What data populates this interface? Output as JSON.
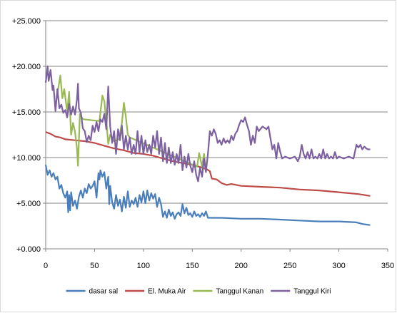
{
  "chart_data": {
    "type": "line",
    "title": "",
    "xlabel": "",
    "ylabel": "",
    "xlim": [
      0,
      350
    ],
    "ylim": [
      0,
      25
    ],
    "x_ticks": [
      "0",
      "50",
      "100",
      "150",
      "200",
      "250",
      "300",
      "350"
    ],
    "y_ticks": [
      "+0.000",
      "+5.000",
      "+10.000",
      "+15.000",
      "+20.000",
      "+25.000"
    ],
    "grid": "horizontal",
    "legend_position": "bottom",
    "series": [
      {
        "name": "dasar sal",
        "color": "#4a7ebb",
        "points": [
          [
            0,
            9.2
          ],
          [
            2,
            8.1
          ],
          [
            4,
            8.6
          ],
          [
            6,
            7.9
          ],
          [
            8,
            8.3
          ],
          [
            10,
            7.6
          ],
          [
            12,
            7.9
          ],
          [
            14,
            6.6
          ],
          [
            16,
            7.0
          ],
          [
            18,
            6.1
          ],
          [
            20,
            5.6
          ],
          [
            22,
            6.3
          ],
          [
            23,
            4.0
          ],
          [
            24,
            5.9
          ],
          [
            25,
            4.2
          ],
          [
            26,
            6.2
          ],
          [
            28,
            4.7
          ],
          [
            30,
            5.3
          ],
          [
            32,
            4.4
          ],
          [
            34,
            5.7
          ],
          [
            36,
            6.4
          ],
          [
            38,
            5.6
          ],
          [
            40,
            6.6
          ],
          [
            42,
            6.1
          ],
          [
            44,
            7.1
          ],
          [
            46,
            6.6
          ],
          [
            48,
            6.9
          ],
          [
            50,
            7.4
          ],
          [
            52,
            5.6
          ],
          [
            54,
            8.3
          ],
          [
            55,
            7.6
          ],
          [
            56,
            8.6
          ],
          [
            58,
            7.9
          ],
          [
            60,
            8.4
          ],
          [
            62,
            6.6
          ],
          [
            64,
            7.9
          ],
          [
            65,
            4.9
          ],
          [
            66,
            6.9
          ],
          [
            68,
            5.1
          ],
          [
            70,
            4.4
          ],
          [
            72,
            5.9
          ],
          [
            74,
            4.7
          ],
          [
            76,
            5.4
          ],
          [
            78,
            4.1
          ],
          [
            80,
            5.7
          ],
          [
            82,
            4.5
          ],
          [
            84,
            6.3
          ],
          [
            86,
            4.6
          ],
          [
            88,
            5.3
          ],
          [
            90,
            4.9
          ],
          [
            92,
            5.6
          ],
          [
            94,
            4.6
          ],
          [
            96,
            5.9
          ],
          [
            98,
            5.1
          ],
          [
            100,
            6.3
          ],
          [
            102,
            5.0
          ],
          [
            104,
            6.4
          ],
          [
            106,
            5.3
          ],
          [
            108,
            6.1
          ],
          [
            110,
            5.5
          ],
          [
            112,
            6.0
          ],
          [
            114,
            4.6
          ],
          [
            116,
            5.6
          ],
          [
            118,
            4.9
          ],
          [
            120,
            3.5
          ],
          [
            122,
            4.1
          ],
          [
            124,
            3.4
          ],
          [
            126,
            4.3
          ],
          [
            128,
            3.6
          ],
          [
            130,
            4.0
          ],
          [
            132,
            3.3
          ],
          [
            134,
            3.8
          ],
          [
            136,
            4.0
          ],
          [
            138,
            3.6
          ],
          [
            140,
            4.9
          ],
          [
            142,
            3.9
          ],
          [
            144,
            4.5
          ],
          [
            146,
            3.7
          ],
          [
            148,
            3.9
          ],
          [
            150,
            3.5
          ],
          [
            152,
            4.1
          ],
          [
            154,
            3.6
          ],
          [
            156,
            3.8
          ],
          [
            158,
            3.5
          ],
          [
            160,
            3.9
          ],
          [
            162,
            3.6
          ],
          [
            164,
            4.1
          ],
          [
            166,
            3.4
          ],
          [
            180,
            3.4
          ],
          [
            200,
            3.3
          ],
          [
            220,
            3.3
          ],
          [
            240,
            3.2
          ],
          [
            260,
            3.1
          ],
          [
            280,
            3.0
          ],
          [
            300,
            3.0
          ],
          [
            318,
            2.9
          ],
          [
            325,
            2.7
          ],
          [
            332,
            2.6
          ]
        ]
      },
      {
        "name": "El. Muka Air",
        "color": "#be4b48",
        "points": [
          [
            0,
            12.8
          ],
          [
            5,
            12.6
          ],
          [
            10,
            12.3
          ],
          [
            15,
            12.2
          ],
          [
            20,
            12.0
          ],
          [
            30,
            11.9
          ],
          [
            40,
            11.8
          ],
          [
            50,
            11.6
          ],
          [
            60,
            11.3
          ],
          [
            70,
            11.0
          ],
          [
            80,
            10.8
          ],
          [
            90,
            10.5
          ],
          [
            100,
            10.4
          ],
          [
            110,
            10.2
          ],
          [
            120,
            9.9
          ],
          [
            130,
            9.6
          ],
          [
            140,
            9.4
          ],
          [
            150,
            9.2
          ],
          [
            160,
            8.9
          ],
          [
            165,
            8.7
          ],
          [
            168,
            8.5
          ],
          [
            170,
            7.7
          ],
          [
            175,
            7.6
          ],
          [
            180,
            7.2
          ],
          [
            185,
            7.0
          ],
          [
            190,
            7.1
          ],
          [
            200,
            6.9
          ],
          [
            220,
            6.8
          ],
          [
            240,
            6.7
          ],
          [
            260,
            6.5
          ],
          [
            280,
            6.4
          ],
          [
            300,
            6.2
          ],
          [
            320,
            6.0
          ],
          [
            332,
            5.8
          ]
        ]
      },
      {
        "name": "Tanggul Kanan",
        "color": "#98b954",
        "points": [
          [
            12,
            17.0
          ],
          [
            15,
            19.0
          ],
          [
            17,
            16.5
          ],
          [
            19,
            17.5
          ],
          [
            22,
            15.0
          ],
          [
            24,
            17.2
          ],
          [
            26,
            12.5
          ],
          [
            28,
            13.8
          ],
          [
            30,
            12.8
          ],
          [
            32,
            11.0
          ],
          [
            33,
            9.1
          ],
          [
            35,
            14.8
          ],
          [
            38,
            14.2
          ],
          [
            55,
            14.0
          ],
          [
            58,
            16.8
          ],
          [
            60,
            16.2
          ],
          [
            62,
            14.0
          ],
          [
            64,
            11.5
          ],
          [
            66,
            12.5
          ],
          [
            70,
            11.8
          ],
          [
            75,
            12.0
          ],
          [
            78,
            13.8
          ],
          [
            80,
            16.0
          ],
          [
            82,
            14.5
          ],
          [
            84,
            12.5
          ],
          [
            86,
            12.2
          ],
          [
            155,
            9.0
          ],
          [
            157,
            10.5
          ],
          [
            160,
            9.0
          ],
          [
            162,
            10.4
          ],
          [
            164,
            8.8
          ]
        ]
      },
      {
        "name": "Tanggul Kiri",
        "color": "#7d60a0",
        "points": [
          [
            0,
            18.2
          ],
          [
            2,
            20.0
          ],
          [
            3,
            18.4
          ],
          [
            5,
            19.6
          ],
          [
            7,
            17.4
          ],
          [
            8,
            17.9
          ],
          [
            10,
            15.1
          ],
          [
            12,
            17.5
          ],
          [
            14,
            15.4
          ],
          [
            16,
            15.8
          ],
          [
            18,
            14.9
          ],
          [
            20,
            15.2
          ],
          [
            22,
            14.4
          ],
          [
            24,
            15.9
          ],
          [
            26,
            14.7
          ],
          [
            28,
            15.6
          ],
          [
            30,
            14.7
          ],
          [
            32,
            16.4
          ],
          [
            33,
            18.1
          ],
          [
            34,
            15.4
          ],
          [
            36,
            14.9
          ],
          [
            38,
            13.2
          ],
          [
            40,
            12.9
          ],
          [
            42,
            11.7
          ],
          [
            44,
            12.4
          ],
          [
            46,
            11.9
          ],
          [
            48,
            13.5
          ],
          [
            50,
            12.8
          ],
          [
            52,
            13.9
          ],
          [
            54,
            12.9
          ],
          [
            56,
            14.2
          ],
          [
            58,
            13.9
          ],
          [
            60,
            14.8
          ],
          [
            62,
            13.1
          ],
          [
            64,
            17.8
          ],
          [
            66,
            13.4
          ],
          [
            68,
            11.6
          ],
          [
            70,
            12.9
          ],
          [
            72,
            10.4
          ],
          [
            74,
            13.1
          ],
          [
            76,
            11.9
          ],
          [
            78,
            13.5
          ],
          [
            80,
            10.9
          ],
          [
            82,
            12.4
          ],
          [
            84,
            10.9
          ],
          [
            86,
            12.2
          ],
          [
            88,
            10.4
          ],
          [
            90,
            11.4
          ],
          [
            92,
            10.4
          ],
          [
            94,
            12.9
          ],
          [
            96,
            10.6
          ],
          [
            98,
            12.4
          ],
          [
            100,
            10.4
          ],
          [
            102,
            11.9
          ],
          [
            104,
            10.6
          ],
          [
            106,
            11.4
          ],
          [
            108,
            10.4
          ],
          [
            110,
            12.4
          ],
          [
            112,
            11.1
          ],
          [
            114,
            12.9
          ],
          [
            116,
            10.4
          ],
          [
            118,
            12.2
          ],
          [
            120,
            9.6
          ],
          [
            122,
            11.6
          ],
          [
            124,
            9.4
          ],
          [
            126,
            11.1
          ],
          [
            128,
            9.4
          ],
          [
            130,
            10.6
          ],
          [
            132,
            9.2
          ],
          [
            134,
            10.4
          ],
          [
            136,
            9.4
          ],
          [
            138,
            11.4
          ],
          [
            140,
            8.6
          ],
          [
            142,
            10.1
          ],
          [
            144,
            8.9
          ],
          [
            146,
            10.4
          ],
          [
            148,
            9.1
          ],
          [
            150,
            8.4
          ],
          [
            152,
            9.6
          ],
          [
            154,
            8.1
          ],
          [
            156,
            7.4
          ],
          [
            158,
            8.9
          ],
          [
            160,
            7.9
          ],
          [
            162,
            9.9
          ],
          [
            164,
            8.4
          ],
          [
            166,
            10.4
          ],
          [
            168,
            12.9
          ],
          [
            170,
            12.4
          ],
          [
            172,
            13.1
          ],
          [
            174,
            12.6
          ],
          [
            176,
            11.6
          ],
          [
            178,
            11.9
          ],
          [
            180,
            11.4
          ],
          [
            182,
            12.1
          ],
          [
            184,
            11.6
          ],
          [
            186,
            11.9
          ],
          [
            188,
            11.6
          ],
          [
            190,
            12.4
          ],
          [
            192,
            11.9
          ],
          [
            194,
            12.6
          ],
          [
            196,
            12.9
          ],
          [
            198,
            13.6
          ],
          [
            200,
            14.1
          ],
          [
            202,
            13.9
          ],
          [
            204,
            14.4
          ],
          [
            206,
            13.6
          ],
          [
            208,
            12.9
          ],
          [
            210,
            11.4
          ],
          [
            212,
            12.4
          ],
          [
            214,
            11.6
          ],
          [
            216,
            13.4
          ],
          [
            218,
            12.9
          ],
          [
            222,
            13.4
          ],
          [
            226,
            13.1
          ],
          [
            228,
            13.4
          ],
          [
            230,
            12.1
          ],
          [
            232,
            10.9
          ],
          [
            234,
            11.4
          ],
          [
            236,
            9.9
          ],
          [
            238,
            11.6
          ],
          [
            240,
            10.6
          ],
          [
            242,
            9.9
          ],
          [
            245,
            10.1
          ],
          [
            250,
            9.9
          ],
          [
            255,
            10.1
          ],
          [
            258,
            9.6
          ],
          [
            260,
            10.1
          ],
          [
            262,
            11.4
          ],
          [
            264,
            10.4
          ],
          [
            266,
            9.9
          ],
          [
            268,
            10.6
          ],
          [
            270,
            9.9
          ],
          [
            272,
            10.9
          ],
          [
            274,
            9.9
          ],
          [
            276,
            10.1
          ],
          [
            278,
            9.9
          ],
          [
            280,
            10.4
          ],
          [
            282,
            9.9
          ],
          [
            284,
            10.9
          ],
          [
            286,
            9.9
          ],
          [
            288,
            10.4
          ],
          [
            290,
            9.9
          ],
          [
            292,
            10.1
          ],
          [
            294,
            9.9
          ],
          [
            296,
            10.6
          ],
          [
            298,
            9.9
          ],
          [
            300,
            10.1
          ],
          [
            305,
            9.9
          ],
          [
            310,
            10.1
          ],
          [
            315,
            9.9
          ],
          [
            318,
            11.4
          ],
          [
            320,
            11.1
          ],
          [
            322,
            11.4
          ],
          [
            324,
            10.9
          ],
          [
            326,
            11.2
          ],
          [
            328,
            11.0
          ],
          [
            330,
            10.9
          ],
          [
            332,
            10.9
          ]
        ]
      }
    ]
  }
}
